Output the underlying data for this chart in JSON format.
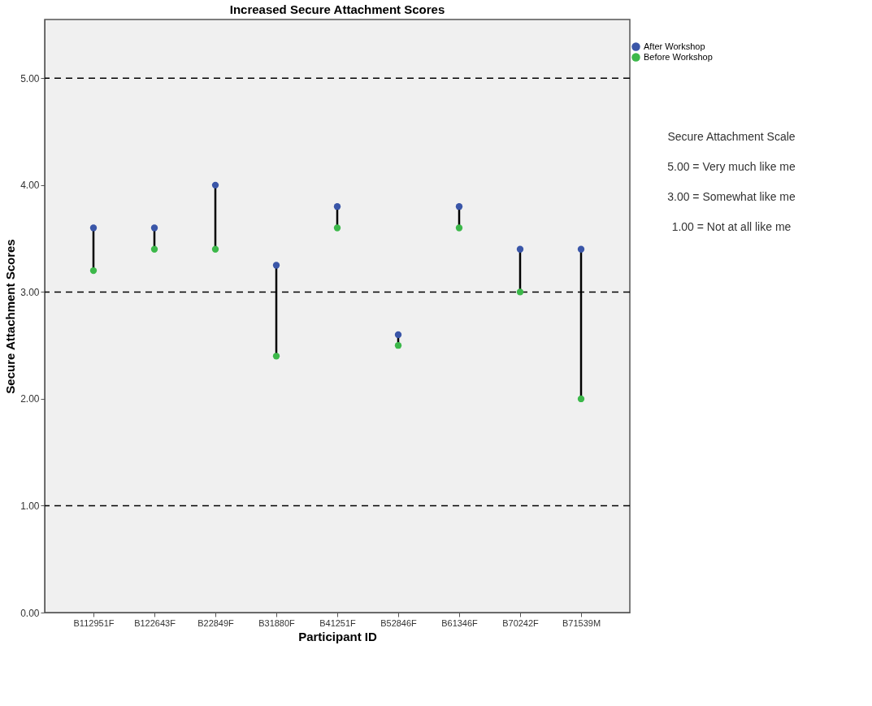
{
  "chart_data": {
    "type": "scatter",
    "title": "Increased Secure Attachment Scores",
    "xlabel": "Participant ID",
    "ylabel": "Secure Attachment Scores",
    "categories": [
      "B112951F",
      "B122643F",
      "B22849F",
      "B31880F",
      "B41251F",
      "B52846F",
      "B61346F",
      "B70242F",
      "B71539M"
    ],
    "series": [
      {
        "name": "After Workshop",
        "color": "#3a56a8",
        "values": [
          3.6,
          3.6,
          4.0,
          3.25,
          3.8,
          2.6,
          3.8,
          3.4,
          3.4
        ]
      },
      {
        "name": "Before Workshop",
        "color": "#3cb84a",
        "values": [
          3.2,
          3.4,
          3.4,
          2.4,
          3.6,
          2.5,
          3.6,
          3.0,
          2.0
        ]
      }
    ],
    "ylim": [
      0,
      5.55
    ],
    "yticks": [
      {
        "value": 0,
        "label": "0.00"
      },
      {
        "value": 1,
        "label": "1.00"
      },
      {
        "value": 2,
        "label": "2.00"
      },
      {
        "value": 3,
        "label": "3.00"
      },
      {
        "value": 4,
        "label": "4.00"
      },
      {
        "value": 5,
        "label": "5.00"
      }
    ],
    "ref_lines": [
      {
        "axis": "y",
        "value": 1,
        "color": "#000000",
        "line_style": "dashed"
      },
      {
        "axis": "y",
        "value": 3,
        "color": "#000000",
        "line_style": "dashed"
      },
      {
        "axis": "y",
        "value": 5,
        "color": "#000000",
        "line_style": "dashed"
      }
    ],
    "annotations": [
      "Secure Attachment Scale",
      "5.00 = Very much like me",
      "3.00 = Somewhat like me",
      "1.00 = Not at all like me"
    ],
    "grid": false,
    "legend": "top right",
    "marker": "circle"
  }
}
